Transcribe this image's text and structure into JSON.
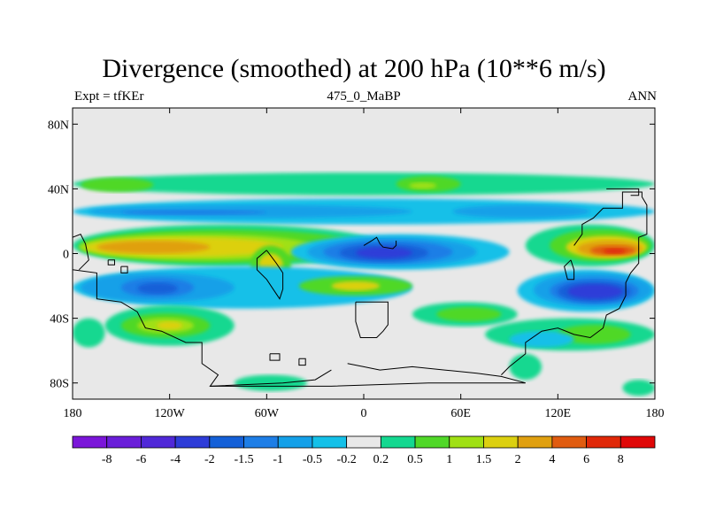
{
  "title": "Divergence (smoothed) at 200 hPa (10**6 m/s)",
  "subtitle_left": "Expt = tfKEr",
  "subtitle_center": "475_0_MaBP",
  "subtitle_right": "ANN",
  "chart_data": {
    "type": "heatmap",
    "title": "Divergence (smoothed) at 200 hPa (10**6 m/s)",
    "x_axis": {
      "range": [
        -180,
        180
      ],
      "ticks": [
        -180,
        -120,
        -60,
        0,
        60,
        120,
        180
      ],
      "tick_labels": [
        "180",
        "120W",
        "60W",
        "0",
        "60E",
        "120E",
        "180"
      ]
    },
    "y_axis": {
      "range": [
        -90,
        90
      ],
      "ticks": [
        -80,
        -40,
        0,
        40,
        80
      ],
      "tick_labels": [
        "80S",
        "40S",
        "0",
        "40N",
        "80N"
      ]
    },
    "colorbar": {
      "levels": [
        "-8",
        "-6",
        "-4",
        "-2",
        "-1.5",
        "-1",
        "-0.5",
        "-0.2",
        "0.2",
        "0.5",
        "1",
        "1.5",
        "2",
        "4",
        "6",
        "8"
      ],
      "colors": [
        "#7b16d9",
        "#6a1ed9",
        "#5028d8",
        "#2e3cd8",
        "#1460d8",
        "#1e7ee6",
        "#14a0e8",
        "#14c0e8",
        "#e8e8e8",
        "#14d890",
        "#50d828",
        "#a0e014",
        "#dcd010",
        "#e0a010",
        "#e05c10",
        "#e02808",
        "#e00808"
      ]
    },
    "features": [
      {
        "level": "0.5",
        "desc": "northern subtropical band",
        "lon": [
          -180,
          180
        ],
        "lat": [
          35,
          50
        ]
      },
      {
        "level": "2",
        "desc": "tropical maximum over Pacific/Americas",
        "lon": [
          -175,
          -110
        ],
        "lat": [
          -5,
          12
        ]
      },
      {
        "level": "-4",
        "desc": "convergence minimum over Africa",
        "lon": [
          -15,
          35
        ],
        "lat": [
          -6,
          6
        ]
      },
      {
        "level": "6",
        "desc": "western Pacific maximum",
        "lon": [
          135,
          170
        ],
        "lat": [
          -5,
          5
        ]
      },
      {
        "level": "-4",
        "desc": "southern Pacific minimum",
        "lon": [
          125,
          160
        ],
        "lat": [
          -30,
          -16
        ]
      },
      {
        "level": "0.5",
        "desc": "southern mid-latitude band",
        "lon": [
          -180,
          180
        ],
        "lat": [
          -50,
          -35
        ]
      }
    ]
  }
}
